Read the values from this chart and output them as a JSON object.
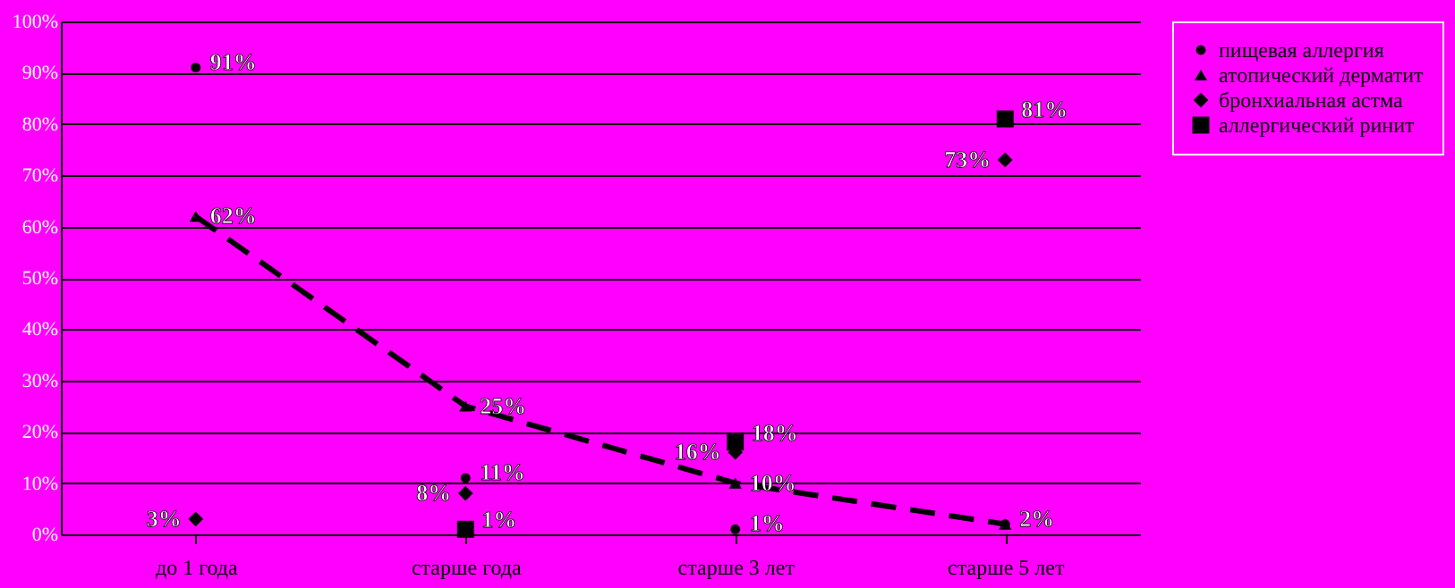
{
  "chart_data": {
    "type": "scatter",
    "categories": [
      "до 1 года",
      "старше года",
      "старше 3 лет",
      "старше 5 лет"
    ],
    "series": [
      {
        "name": "пищевая аллергия",
        "type": "scatter",
        "marker": "circle",
        "color": "#000000",
        "values": [
          91,
          11,
          1,
          2
        ],
        "value_labels": [
          "91%",
          "11%",
          "1%",
          "2%"
        ]
      },
      {
        "name": "атопический дерматит",
        "type": "line",
        "marker": "triangle",
        "line_style": "dashed",
        "color": "#000000",
        "values": [
          62,
          25,
          10,
          2
        ],
        "value_labels": [
          "62%",
          "25%",
          "10%",
          null
        ]
      },
      {
        "name": "бронхиальная астма",
        "type": "scatter",
        "marker": "diamond",
        "color": "#000000",
        "values": [
          3,
          8,
          16,
          73
        ],
        "value_labels": [
          "3%",
          "8%",
          "16%",
          "73%"
        ]
      },
      {
        "name": "аллергический ринит",
        "type": "scatter",
        "marker": "square",
        "color": "#000000",
        "values": [
          null,
          1,
          18,
          81
        ],
        "value_labels": [
          null,
          "1%",
          "18%",
          "81%"
        ]
      }
    ],
    "ylim": [
      0,
      100
    ],
    "yticks": [
      {
        "value": 0,
        "label": "0%"
      },
      {
        "value": 10,
        "label": "10%"
      },
      {
        "value": 20,
        "label": "20%"
      },
      {
        "value": 30,
        "label": "30%"
      },
      {
        "value": 40,
        "label": "40%"
      },
      {
        "value": 50,
        "label": "50%"
      },
      {
        "value": 60,
        "label": "60%"
      },
      {
        "value": 70,
        "label": "70%"
      },
      {
        "value": 80,
        "label": "80%"
      },
      {
        "value": 90,
        "label": "90%"
      },
      {
        "value": 100,
        "label": "100%"
      }
    ],
    "grid": "y",
    "legend": "right"
  }
}
